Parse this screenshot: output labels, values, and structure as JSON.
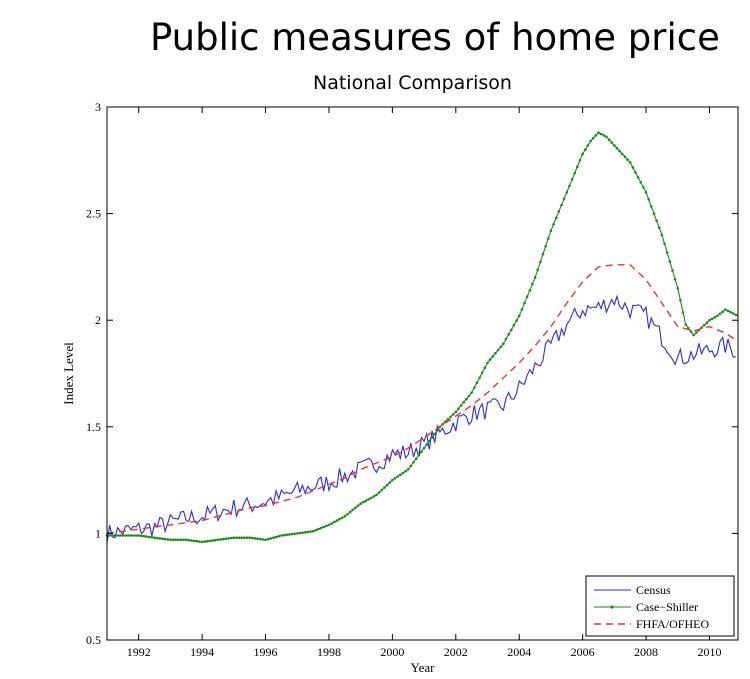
{
  "title": "Public measures of home price",
  "subtitle": "National Comparison",
  "chart_data": {
    "type": "line",
    "xlabel": "Year",
    "ylabel": "Index Level",
    "xlim": [
      1991.0,
      2010.9
    ],
    "ylim": [
      0.5,
      3
    ],
    "x_ticks": [
      1992,
      1994,
      1996,
      1998,
      2000,
      2002,
      2004,
      2006,
      2008,
      2010
    ],
    "x_tick_labels": [
      "1992",
      "1994",
      "1996",
      "1998",
      "2000",
      "2002",
      "2004",
      "2006",
      "2008",
      "2010"
    ],
    "y_ticks": [
      0.5,
      1,
      1.5,
      2,
      2.5,
      3
    ],
    "y_tick_labels": [
      "0.5",
      "1",
      "1.5",
      "2",
      "2.5",
      "3"
    ],
    "legend_position": "bottom-right",
    "grid": false,
    "series": [
      {
        "name": "Census",
        "color": "#2b2bde",
        "style": "solid",
        "x": [
          1991.0,
          1991.5,
          1992.0,
          1992.5,
          1993.0,
          1993.5,
          1994.0,
          1994.5,
          1995.0,
          1995.5,
          1996.0,
          1996.5,
          1997.0,
          1997.5,
          1998.0,
          1998.5,
          1999.0,
          1999.5,
          2000.0,
          2000.5,
          2001.0,
          2001.5,
          2002.0,
          2002.5,
          2003.0,
          2003.5,
          2004.0,
          2004.5,
          2005.0,
          2005.5,
          2006.0,
          2006.5,
          2007.0,
          2007.5,
          2008.0,
          2008.5,
          2009.0,
          2009.5,
          2010.0,
          2010.5,
          2010.9
        ],
        "y": [
          1.0,
          1.01,
          1.02,
          1.03,
          1.05,
          1.07,
          1.08,
          1.1,
          1.12,
          1.13,
          1.15,
          1.17,
          1.2,
          1.22,
          1.24,
          1.27,
          1.3,
          1.33,
          1.37,
          1.38,
          1.42,
          1.47,
          1.52,
          1.56,
          1.58,
          1.6,
          1.68,
          1.78,
          1.88,
          1.98,
          2.05,
          2.06,
          2.1,
          2.05,
          2.02,
          1.92,
          1.82,
          1.84,
          1.86,
          1.88,
          1.85
        ],
        "noise": 0.045
      },
      {
        "name": "Case−Shiller",
        "color": "#1a8a1a",
        "style": "solid-dots",
        "x": [
          1991.0,
          1991.5,
          1992.0,
          1992.5,
          1993.0,
          1993.5,
          1994.0,
          1994.5,
          1995.0,
          1995.5,
          1996.0,
          1996.5,
          1997.0,
          1997.5,
          1998.0,
          1998.5,
          1999.0,
          1999.5,
          2000.0,
          2000.5,
          2001.0,
          2001.5,
          2002.0,
          2002.5,
          2003.0,
          2003.5,
          2004.0,
          2004.5,
          2005.0,
          2005.5,
          2006.0,
          2006.25,
          2006.5,
          2006.75,
          2007.0,
          2007.5,
          2008.0,
          2008.5,
          2009.0,
          2009.25,
          2009.5,
          2010.0,
          2010.25,
          2010.5,
          2010.9
        ],
        "y": [
          0.99,
          0.99,
          0.99,
          0.98,
          0.97,
          0.97,
          0.96,
          0.97,
          0.98,
          0.98,
          0.97,
          0.99,
          1.0,
          1.01,
          1.04,
          1.08,
          1.14,
          1.18,
          1.25,
          1.3,
          1.4,
          1.5,
          1.57,
          1.66,
          1.8,
          1.89,
          2.02,
          2.2,
          2.42,
          2.6,
          2.78,
          2.84,
          2.88,
          2.86,
          2.82,
          2.74,
          2.6,
          2.4,
          2.15,
          1.98,
          1.93,
          2.0,
          2.02,
          2.05,
          2.02
        ]
      },
      {
        "name": "FHFA/OFHEO",
        "color": "#ee3333",
        "style": "dashed",
        "x": [
          1991.0,
          1991.5,
          1992.0,
          1992.5,
          1993.0,
          1993.5,
          1994.0,
          1994.5,
          1995.0,
          1995.5,
          1996.0,
          1996.5,
          1997.0,
          1997.5,
          1998.0,
          1998.5,
          1999.0,
          1999.5,
          2000.0,
          2000.5,
          2001.0,
          2001.5,
          2002.0,
          2002.5,
          2003.0,
          2003.5,
          2004.0,
          2004.5,
          2005.0,
          2005.5,
          2006.0,
          2006.5,
          2007.0,
          2007.5,
          2008.0,
          2008.5,
          2009.0,
          2009.5,
          2010.0,
          2010.5,
          2010.9
        ],
        "y": [
          1.0,
          1.01,
          1.02,
          1.03,
          1.04,
          1.05,
          1.06,
          1.08,
          1.1,
          1.12,
          1.13,
          1.15,
          1.17,
          1.2,
          1.23,
          1.26,
          1.3,
          1.33,
          1.36,
          1.4,
          1.45,
          1.5,
          1.55,
          1.6,
          1.66,
          1.73,
          1.8,
          1.88,
          1.97,
          2.08,
          2.18,
          2.25,
          2.26,
          2.26,
          2.19,
          2.08,
          1.97,
          1.95,
          1.97,
          1.94,
          1.9
        ]
      }
    ]
  }
}
